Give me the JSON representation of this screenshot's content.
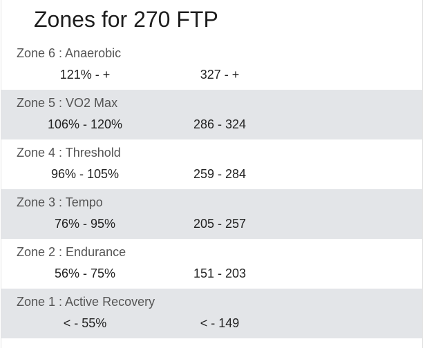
{
  "title": "Zones for 270 FTP",
  "zones": [
    {
      "name": "Zone 6 : Anaerobic",
      "percent": "121% - +",
      "watts": "327 - +"
    },
    {
      "name": "Zone 5 : VO2 Max",
      "percent": "106% - 120%",
      "watts": "286 - 324"
    },
    {
      "name": "Zone 4 : Threshold",
      "percent": "96% - 105%",
      "watts": "259 - 284"
    },
    {
      "name": "Zone 3 : Tempo",
      "percent": "76% - 95%",
      "watts": "205 - 257"
    },
    {
      "name": "Zone 2 : Endurance",
      "percent": "56% - 75%",
      "watts": "151 - 203"
    },
    {
      "name": "Zone 1 : Active Recovery",
      "percent": "< - 55%",
      "watts": "< - 149"
    }
  ],
  "colors": {
    "shaded_row": "#e3e5e8",
    "title_text": "#1d1d1d",
    "label_text": "#555555"
  }
}
